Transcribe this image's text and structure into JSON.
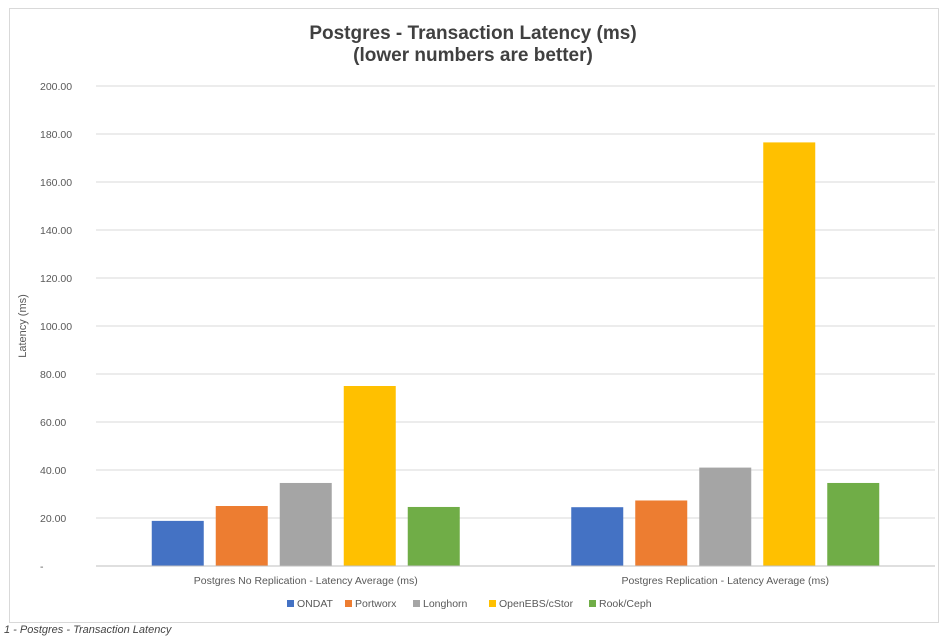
{
  "chart_data": {
    "type": "bar",
    "title_lines": [
      "Postgres - Transaction Latency (ms)",
      "(lower numbers are better)"
    ],
    "ylabel": "Latency (ms)",
    "xlabel": "",
    "ylim": [
      0,
      200
    ],
    "y_ticks": [
      {
        "value": 0,
        "label": "-"
      },
      {
        "value": 20,
        "label": "20.00"
      },
      {
        "value": 40,
        "label": "40.00"
      },
      {
        "value": 60,
        "label": "60.00"
      },
      {
        "value": 80,
        "label": "80.00"
      },
      {
        "value": 100,
        "label": "100.00"
      },
      {
        "value": 120,
        "label": "120.00"
      },
      {
        "value": 140,
        "label": "140.00"
      },
      {
        "value": 160,
        "label": "160.00"
      },
      {
        "value": 180,
        "label": "180.00"
      },
      {
        "value": 200,
        "label": "200.00"
      }
    ],
    "grid": true,
    "legend_position": "bottom",
    "categories": [
      "Postgres No Replication - Latency Average (ms)",
      "Postgres Replication - Latency Average (ms)"
    ],
    "series": [
      {
        "name": "ONDAT",
        "color": "#4472c4",
        "values": [
          18.8,
          24.5
        ]
      },
      {
        "name": "Portworx",
        "color": "#ed7d31",
        "values": [
          25.0,
          27.3
        ]
      },
      {
        "name": "Longhorn",
        "color": "#a5a5a5",
        "values": [
          34.6,
          41.0
        ]
      },
      {
        "name": "OpenEBS/cStor",
        "color": "#ffc000",
        "values": [
          75.0,
          176.5
        ]
      },
      {
        "name": "Rook/Ceph",
        "color": "#70ad47",
        "values": [
          24.6,
          34.6
        ]
      }
    ]
  },
  "caption": "1 - Postgres - Transaction Latency"
}
